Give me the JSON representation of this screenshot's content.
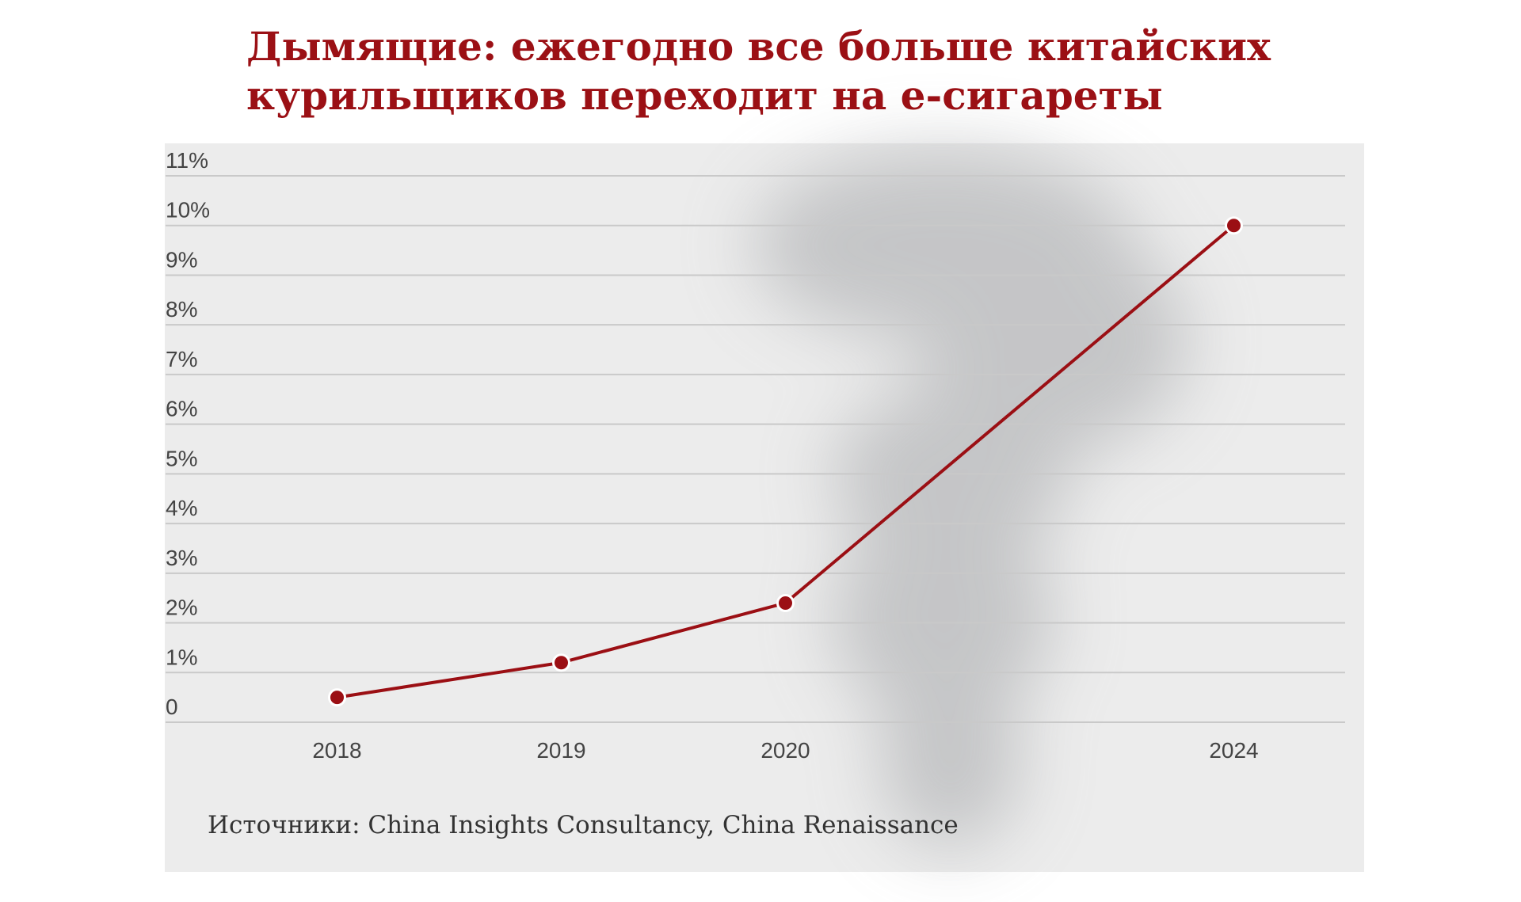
{
  "chart_data": {
    "type": "line",
    "title": "Дымящие: ежегодно все больше китайских курильщиков переходит на е-сигареты",
    "categories": [
      "2018",
      "2019",
      "2020",
      null,
      "2024"
    ],
    "series": [
      {
        "name": null,
        "color": "#9b0f14",
        "values": [
          0.5,
          1.2,
          2.4,
          null,
          10
        ]
      }
    ],
    "ylim": [
      0,
      11
    ],
    "yticks": [
      0,
      {
        "value": 1,
        "label": "1%"
      },
      {
        "value": 2,
        "label": "2%"
      },
      {
        "value": 3,
        "label": "3%"
      },
      {
        "value": 4,
        "label": "4%"
      },
      {
        "value": 5,
        "label": "5%"
      },
      {
        "value": 6,
        "label": "6%"
      },
      {
        "value": 7,
        "label": "7%"
      },
      {
        "value": 8,
        "label": "8%"
      },
      {
        "value": 9,
        "label": "9%"
      },
      {
        "value": 10,
        "label": "10%"
      },
      {
        "value": 11,
        "label": "11%"
      }
    ],
    "grid": true,
    "source": "Источники: China Insights Consultancy, China Renaissance"
  }
}
